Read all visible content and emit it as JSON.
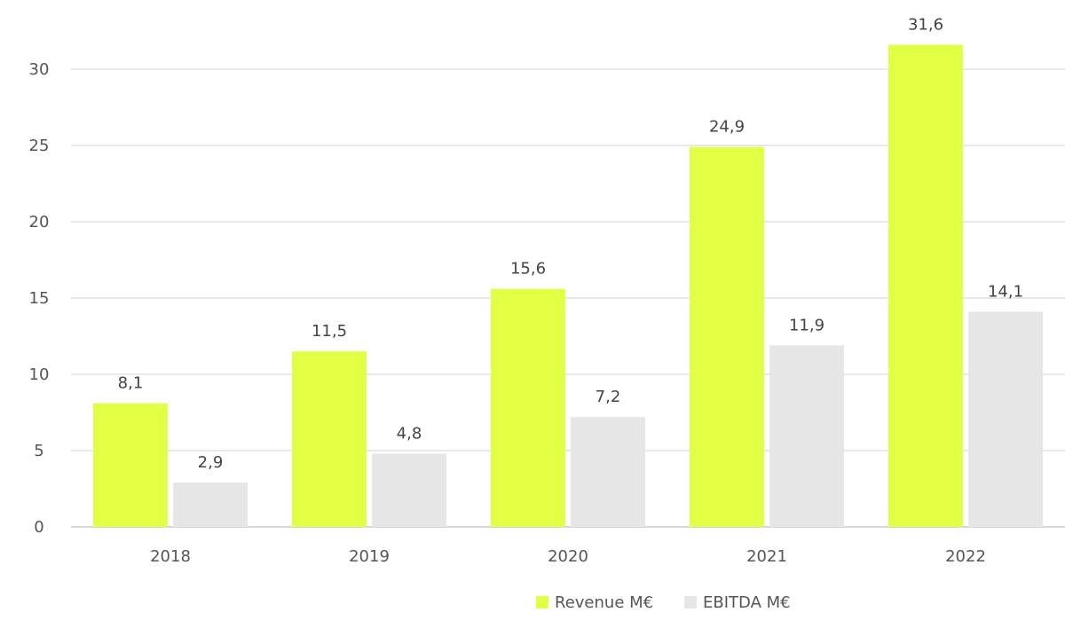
{
  "chart_data": {
    "type": "bar",
    "title": "",
    "xlabel": "",
    "ylabel": "",
    "categories": [
      "2018",
      "2019",
      "2020",
      "2021",
      "2022"
    ],
    "series": [
      {
        "name": "Revenue M€",
        "values": [
          8.1,
          11.5,
          15.6,
          24.9,
          31.6
        ],
        "labels": [
          "8,1",
          "11,5",
          "15,6",
          "24,9",
          "31,6"
        ],
        "color": "#e3ff44"
      },
      {
        "name": "EBITDA  M€",
        "values": [
          2.9,
          4.8,
          7.2,
          11.9,
          14.1
        ],
        "labels": [
          "2,9",
          "4,8",
          "7,2",
          "11,9",
          "14,1"
        ],
        "color": "#e6e6e6"
      }
    ],
    "ylim": [
      0,
      33
    ],
    "y_ticks": [
      "0",
      "5",
      "10",
      "15",
      "20",
      "25",
      "30"
    ],
    "grid": true,
    "gridline_color": "#d9d9d9",
    "legend_position": "bottom"
  }
}
